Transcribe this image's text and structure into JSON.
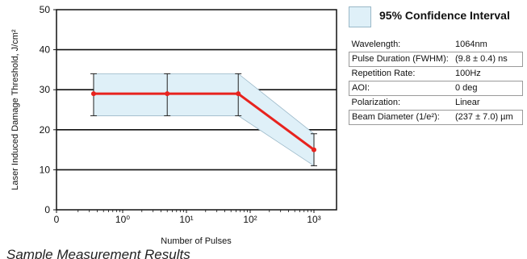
{
  "chart_data": {
    "type": "line",
    "ylabel": "Laser Induced Damage Threshold, J/cm²",
    "xlabel": "Number of Pulses",
    "ylim": [
      0,
      50
    ],
    "y_ticks": [
      "0",
      "10",
      "20",
      "30",
      "40",
      "50"
    ],
    "x_ticks": [
      "0",
      "10⁰",
      "10¹",
      "10²",
      "10³"
    ],
    "x_scale": "log",
    "grid": "horizontal",
    "series": [
      {
        "x": [
          "10⁰",
          "10¹",
          "10²",
          "10³"
        ],
        "x_numeric": [
          0.35,
          5,
          65,
          1000
        ],
        "values": [
          29,
          29,
          29,
          15
        ],
        "error_low": [
          23.5,
          23.5,
          23.5,
          11
        ],
        "error_high": [
          34,
          34,
          34,
          19
        ],
        "color": "#e8231e"
      }
    ],
    "band": {
      "label": "95% Confidence Interval",
      "color": "#dff0f8",
      "edge_color": "#9ab8c8"
    }
  },
  "legend": {
    "label": "95% Confidence Interval"
  },
  "specs": [
    {
      "label": "Wavelength:",
      "value": "1064nm"
    },
    {
      "label": "Pulse Duration (FWHM):",
      "value": "(9.8 ± 0.4) ns"
    },
    {
      "label": "Repetition Rate:",
      "value": "100Hz"
    },
    {
      "label": "AOI:",
      "value": "0 deg"
    },
    {
      "label": "Polarization:",
      "value": "Linear"
    },
    {
      "label": "Beam Diameter (1/e²):",
      "value": "(237 ± 7.0) µm"
    }
  ],
  "caption": "Sample Measurement Results"
}
